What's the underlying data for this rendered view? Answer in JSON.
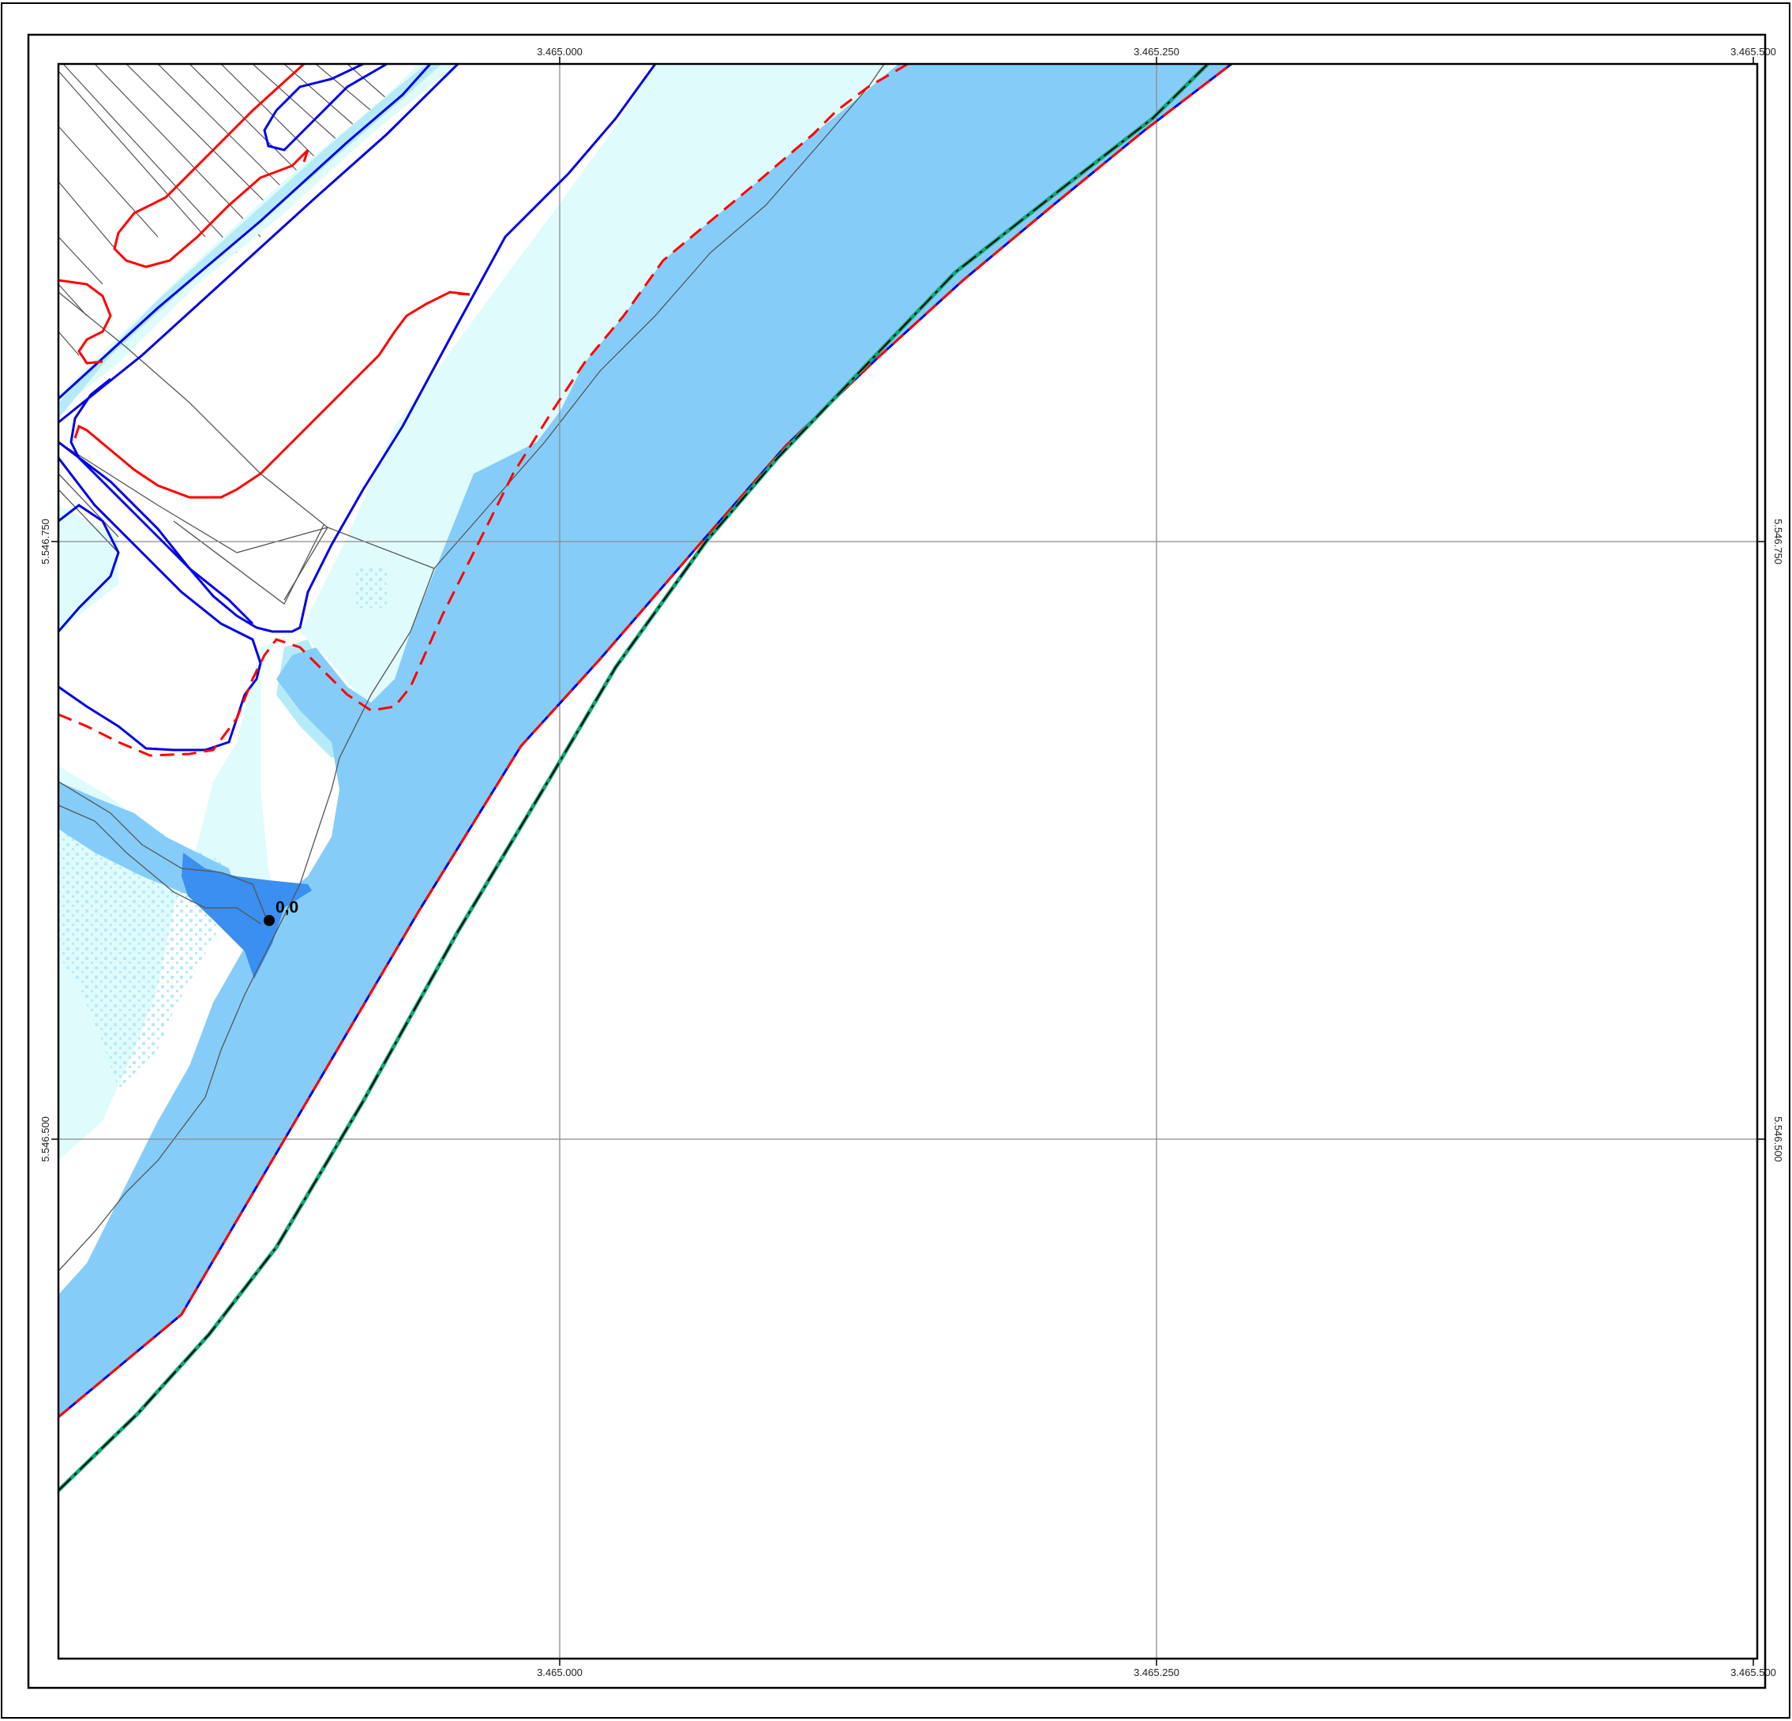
{
  "map": {
    "colors": {
      "river_channel": "#85cdf8",
      "floodplain_light": "#e0fbfb",
      "floodplain_mid": "#b5ebf8",
      "deep_water": "#3a8ff0",
      "boundary_blue": "#0000e6",
      "boundary_red": "#ff0000",
      "levee_green": "#10a878",
      "grid_line": "#8a8a8a",
      "parcel_line": "#555555"
    },
    "grid": {
      "easting_labels": [
        "3.465.000",
        "3.465.250",
        "3.465.500"
      ],
      "northing_labels": [
        "5.546.750",
        "5.546.500"
      ]
    },
    "point": {
      "label": "0,0"
    },
    "icons": [
      "measurement-point-icon"
    ]
  }
}
